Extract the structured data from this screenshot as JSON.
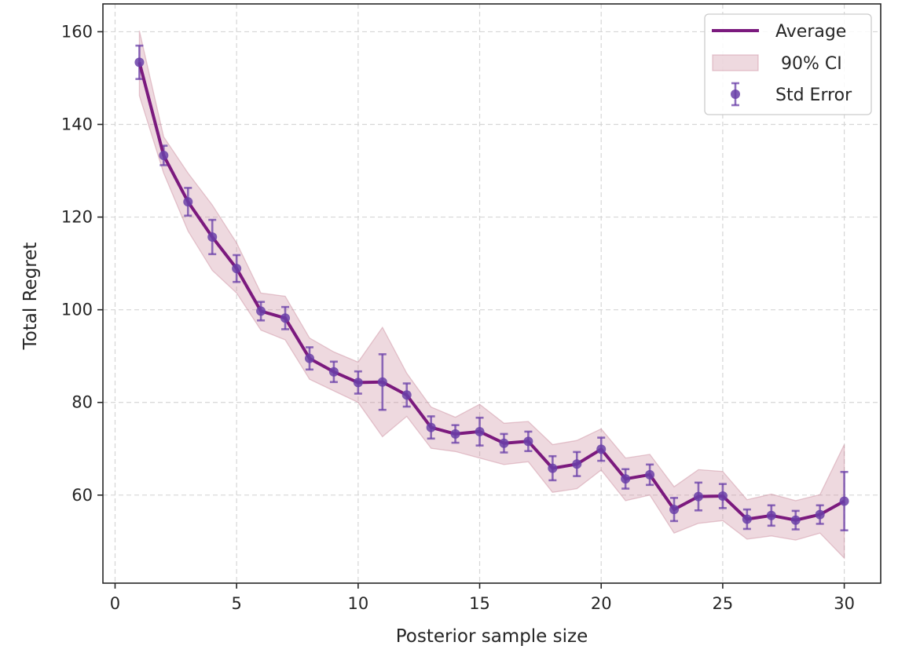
{
  "chart_data": {
    "type": "line",
    "xlabel": "Posterior sample size",
    "ylabel": "Total Regret",
    "xlim": [
      -0.5,
      31.5
    ],
    "ylim": [
      41,
      166
    ],
    "xticks": [
      0,
      5,
      10,
      15,
      20,
      25,
      30
    ],
    "yticks": [
      60,
      80,
      100,
      120,
      140,
      160
    ],
    "grid": true,
    "legend_position": "top-right",
    "legend": [
      "Average",
      " 90% CI",
      "Std Error"
    ],
    "colors": {
      "average": "#7b1a7e",
      "ci": "#c98a9c",
      "errorbar": "#6a3fa8"
    },
    "x": [
      1,
      2,
      3,
      4,
      5,
      6,
      7,
      8,
      9,
      10,
      11,
      12,
      13,
      14,
      15,
      16,
      17,
      18,
      19,
      20,
      21,
      22,
      23,
      24,
      25,
      26,
      27,
      28,
      29,
      30
    ],
    "average": [
      153.4,
      133.3,
      123.3,
      115.7,
      108.9,
      99.7,
      98.2,
      89.5,
      86.6,
      84.3,
      84.4,
      81.6,
      74.6,
      73.2,
      73.7,
      71.2,
      71.6,
      65.8,
      66.7,
      69.9,
      63.5,
      64.4,
      56.9,
      59.7,
      59.8,
      54.8,
      55.6,
      54.6,
      55.8,
      58.7
    ],
    "std_error": [
      3.6,
      2.1,
      3.0,
      3.7,
      2.9,
      2.0,
      2.4,
      2.4,
      2.2,
      2.4,
      6.0,
      2.5,
      2.4,
      1.9,
      3.0,
      2.0,
      2.1,
      2.6,
      2.6,
      2.5,
      2.1,
      2.2,
      2.5,
      3.0,
      2.6,
      2.1,
      2.2,
      2.0,
      2.0,
      6.3
    ],
    "ci_lower": [
      146.2,
      129.5,
      117.0,
      108.5,
      103.6,
      95.6,
      93.5,
      85.0,
      82.5,
      80.0,
      72.6,
      77.0,
      70.1,
      69.4,
      68.0,
      66.6,
      67.2,
      60.6,
      61.4,
      65.4,
      58.8,
      60.0,
      51.8,
      53.9,
      54.5,
      50.5,
      51.2,
      50.3,
      51.8,
      46.4
    ],
    "ci_upper": [
      160.2,
      137.3,
      129.5,
      122.6,
      114.4,
      103.6,
      102.9,
      93.9,
      90.9,
      88.7,
      96.2,
      86.3,
      79.0,
      76.8,
      79.6,
      75.5,
      75.9,
      70.9,
      71.8,
      74.3,
      68.0,
      68.8,
      61.8,
      65.5,
      65.1,
      59.0,
      60.2,
      58.8,
      60.1,
      70.9
    ]
  }
}
